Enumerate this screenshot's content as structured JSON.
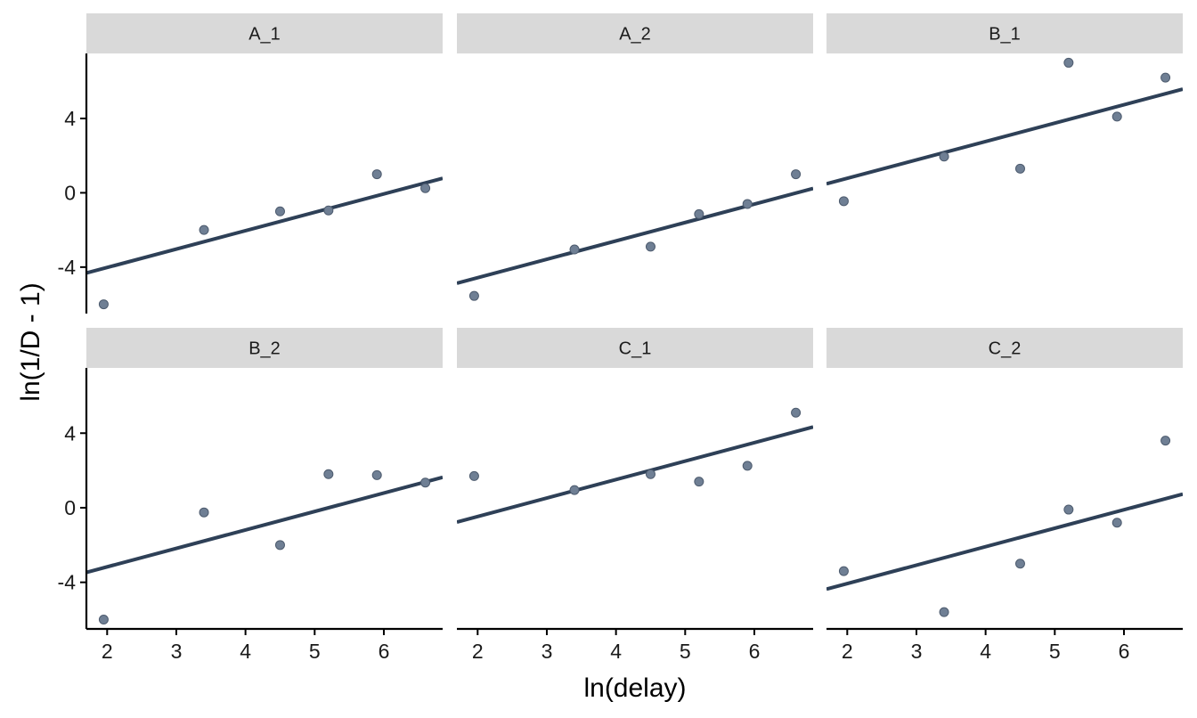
{
  "chart_data": {
    "type": "scatter",
    "xlabel": "ln(delay)",
    "ylabel": "ln(1/D - 1)",
    "xlim": [
      1.7,
      6.85
    ],
    "ylim": [
      -6.5,
      7.5
    ],
    "x_ticks": [
      2,
      3,
      4,
      5,
      6
    ],
    "y_ticks": [
      -4,
      0,
      4
    ],
    "x_tick_labels": [
      "2",
      "3",
      "4",
      "5",
      "6"
    ],
    "y_tick_labels": [
      "-4",
      "0",
      "4"
    ],
    "point_color": "#6f7f94",
    "line_color": "#2e4057",
    "strip_color": "#d9d9d9",
    "grid": false,
    "panels": [
      {
        "label": "A_1",
        "points": [
          [
            1.95,
            -6.0
          ],
          [
            3.4,
            -2.0
          ],
          [
            4.5,
            -1.0
          ],
          [
            5.2,
            -0.95
          ],
          [
            5.9,
            1.0
          ],
          [
            6.6,
            0.25
          ]
        ],
        "fit": {
          "intercept": -6.0,
          "slope": 0.99
        }
      },
      {
        "label": "A_2",
        "points": [
          [
            1.95,
            -5.55
          ],
          [
            3.4,
            -3.05
          ],
          [
            4.5,
            -2.9
          ],
          [
            5.2,
            -1.15
          ],
          [
            5.9,
            -0.6
          ],
          [
            6.6,
            1.0
          ]
        ],
        "fit": {
          "intercept": -6.55,
          "slope": 0.99
        }
      },
      {
        "label": "B_1",
        "points": [
          [
            1.95,
            -0.45
          ],
          [
            3.4,
            1.95
          ],
          [
            4.5,
            1.3
          ],
          [
            5.2,
            7.0
          ],
          [
            5.9,
            4.1
          ],
          [
            6.6,
            6.2
          ]
        ],
        "fit": {
          "intercept": -1.2,
          "slope": 0.99
        }
      },
      {
        "label": "B_2",
        "points": [
          [
            1.95,
            -6.0
          ],
          [
            3.4,
            -0.25
          ],
          [
            4.5,
            -2.0
          ],
          [
            5.2,
            1.8
          ],
          [
            5.9,
            1.75
          ],
          [
            6.6,
            1.35
          ]
        ],
        "fit": {
          "intercept": -5.15,
          "slope": 0.99
        }
      },
      {
        "label": "C_1",
        "points": [
          [
            1.95,
            1.7
          ],
          [
            3.4,
            0.95
          ],
          [
            4.5,
            1.8
          ],
          [
            5.2,
            1.4
          ],
          [
            5.9,
            2.25
          ],
          [
            6.6,
            5.1
          ]
        ],
        "fit": {
          "intercept": -2.45,
          "slope": 0.99
        }
      },
      {
        "label": "C_2",
        "points": [
          [
            1.95,
            -3.4
          ],
          [
            3.4,
            -5.6
          ],
          [
            4.5,
            -3.0
          ],
          [
            5.2,
            -0.1
          ],
          [
            5.9,
            -0.8
          ],
          [
            6.6,
            3.6
          ]
        ],
        "fit": {
          "intercept": -6.05,
          "slope": 0.99
        }
      }
    ]
  }
}
